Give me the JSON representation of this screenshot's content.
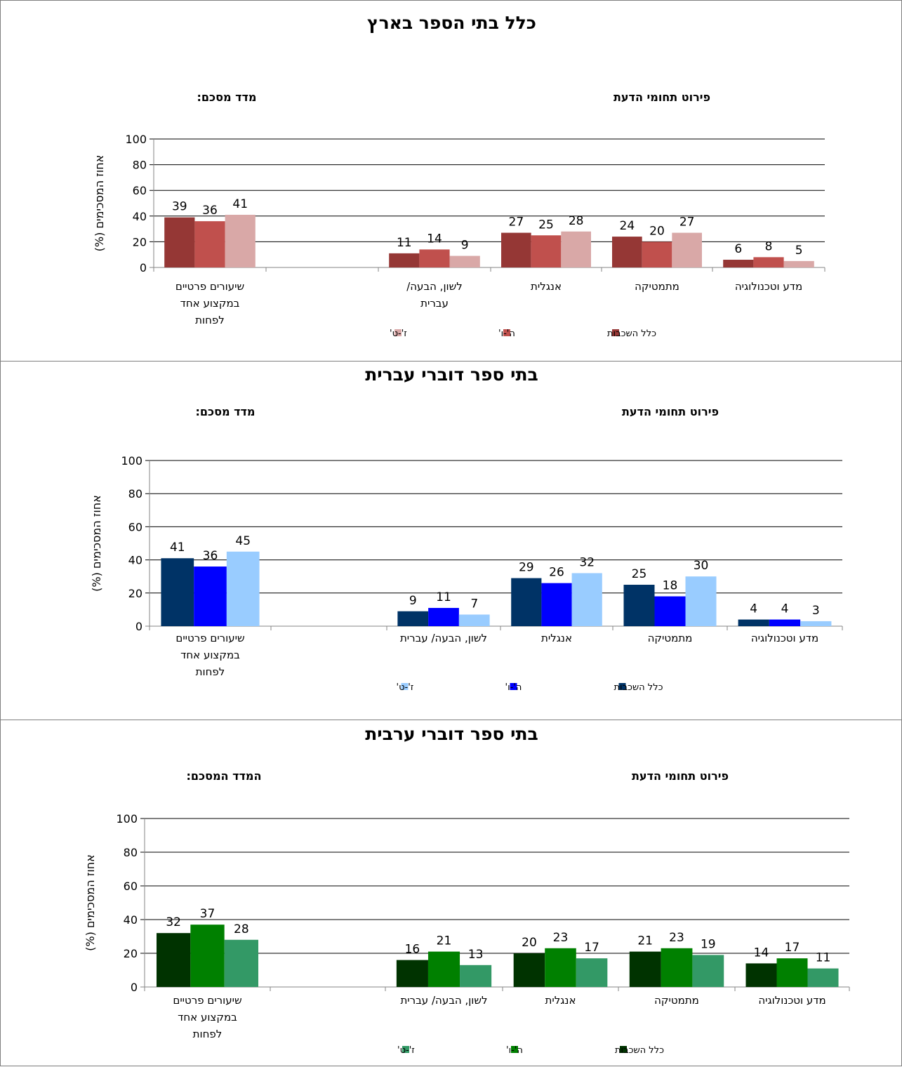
{
  "chart_data": [
    {
      "type": "bar",
      "title": "כלל בתי הספר בארץ",
      "left_heading": "מדד מסכם:",
      "right_heading": "פירוט תחומי הדעת",
      "ylabel": "אחוז המסכימים (%)",
      "ylim": [
        0,
        100
      ],
      "yticks": [
        "0",
        "20",
        "40",
        "60",
        "80",
        "100"
      ],
      "categories": [
        [
          "שיעורים פרטיים",
          "במקצוע אחד",
          "לפחות"
        ],
        [],
        [
          "לשון, הבעה/",
          "עברית"
        ],
        [
          "אנגלית"
        ],
        [
          "מתמטיקה"
        ],
        [
          "מדע וטכנולוגיה"
        ]
      ],
      "series": [
        {
          "name": "כלל השכבות",
          "color": "#953735",
          "values": [
            39,
            null,
            11,
            27,
            24,
            6
          ]
        },
        {
          "name": "ה'-ו'",
          "color": "#c0504d",
          "values": [
            36,
            null,
            14,
            25,
            20,
            8
          ]
        },
        {
          "name": "ז'-ט'",
          "color": "#d9a8a7",
          "values": [
            41,
            null,
            9,
            28,
            27,
            5
          ]
        }
      ],
      "grid": true,
      "legend": "bottom"
    },
    {
      "type": "bar",
      "title": "בתי ספר דוברי עברית",
      "left_heading": "מדד מסכם:",
      "right_heading": "פירוט תחומי הדעת",
      "ylabel": "אחוז המסכימים (%)",
      "ylim": [
        0,
        100
      ],
      "yticks": [
        "0",
        "20",
        "40",
        "60",
        "80",
        "100"
      ],
      "categories": [
        [
          "שיעורים פרטיים",
          "במקצוע אחד",
          "לפחות"
        ],
        [],
        [
          "לשון, הבעה/ עברית"
        ],
        [
          "אנגלית"
        ],
        [
          "מתמטיקה"
        ],
        [
          "מדע וטכנולוגיה"
        ]
      ],
      "series": [
        {
          "name": "כלל השכבות",
          "color": "#003366",
          "values": [
            41,
            null,
            9,
            29,
            25,
            4
          ]
        },
        {
          "name": "ה'-ו'",
          "color": "#0000ff",
          "values": [
            36,
            null,
            11,
            26,
            18,
            4
          ]
        },
        {
          "name": "ז'-ט'",
          "color": "#99ccff",
          "values": [
            45,
            null,
            7,
            32,
            30,
            3
          ]
        }
      ],
      "grid": true,
      "legend": "bottom"
    },
    {
      "type": "bar",
      "title": "בתי ספר דוברי ערבית",
      "left_heading": "המדד המסכם:",
      "right_heading": "פירוט תחומי הדעת",
      "ylabel": "אחוז המסכימים (%)",
      "ylim": [
        0,
        100
      ],
      "yticks": [
        "0",
        "20",
        "40",
        "60",
        "80",
        "100"
      ],
      "categories": [
        [
          "שיעורים פרטיים",
          "במקצוע אחד",
          "לפחות"
        ],
        [],
        [
          "לשון, הבעה/ עברית"
        ],
        [
          "אנגלית"
        ],
        [
          "מתמטיקה"
        ],
        [
          "מדע וטכנולוגיה"
        ]
      ],
      "series": [
        {
          "name": "כלל השכבות",
          "color": "#003300",
          "values": [
            32,
            null,
            16,
            20,
            21,
            14
          ]
        },
        {
          "name": "ה'-ו'",
          "color": "#008000",
          "values": [
            37,
            null,
            21,
            23,
            23,
            17
          ]
        },
        {
          "name": "ז'-ט'",
          "color": "#339966",
          "values": [
            28,
            null,
            13,
            17,
            19,
            11
          ]
        }
      ],
      "grid": true,
      "legend": "bottom"
    }
  ]
}
